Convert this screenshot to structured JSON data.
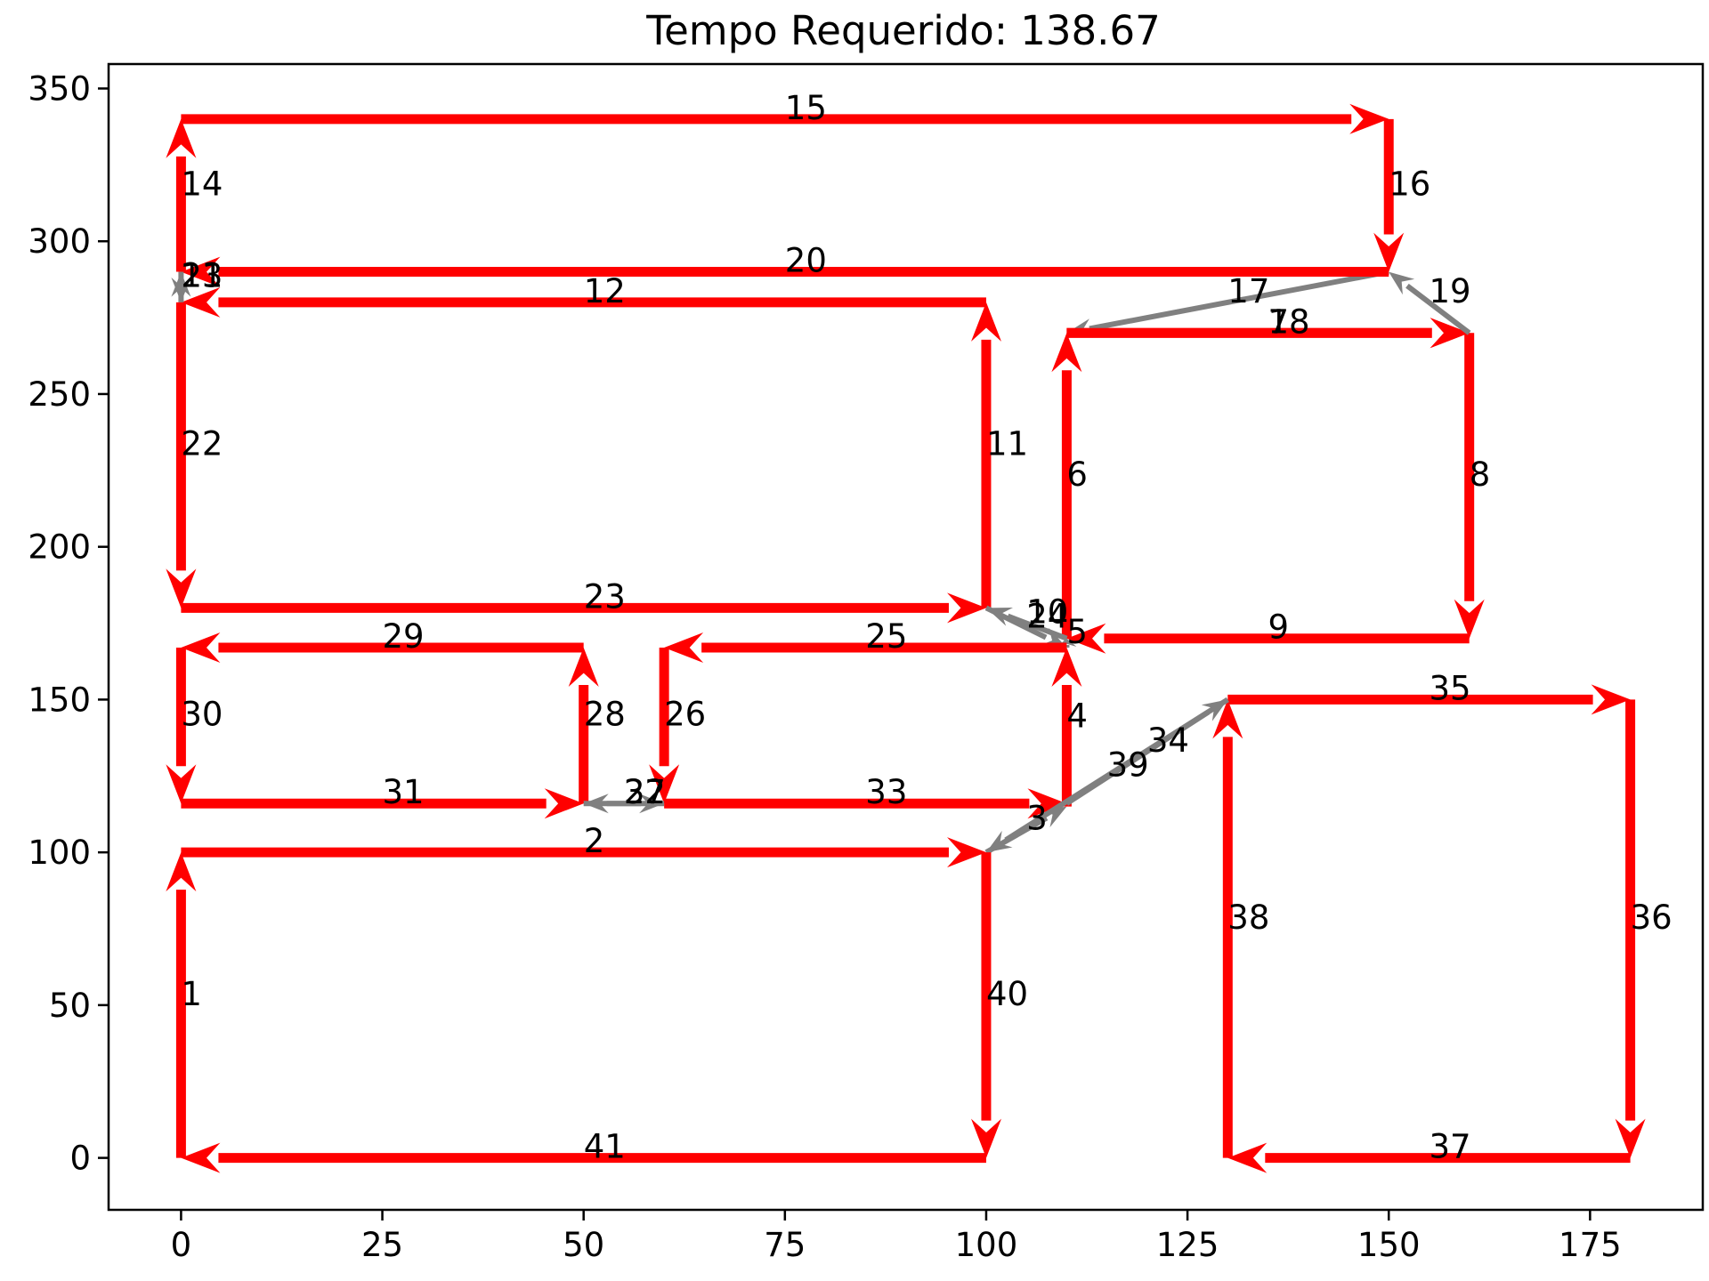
{
  "chart_data": {
    "type": "line",
    "title": "Tempo Requerido: 138.67",
    "xlabel": "",
    "ylabel": "",
    "xlim": [
      -9,
      189
    ],
    "ylim": [
      -17,
      358
    ],
    "xticks": [
      0,
      25,
      50,
      75,
      100,
      125,
      150,
      175
    ],
    "yticks": [
      0,
      50,
      100,
      150,
      200,
      250,
      300,
      350
    ],
    "grid": false,
    "colors": {
      "path": "#ff0000",
      "transition": "#808080"
    },
    "edges": [
      {
        "label": "1",
        "from": [
          0,
          0
        ],
        "to": [
          0,
          100
        ],
        "kind": "path"
      },
      {
        "label": "2",
        "from": [
          0,
          100
        ],
        "to": [
          100,
          100
        ],
        "kind": "path"
      },
      {
        "label": "3",
        "from": [
          100,
          100
        ],
        "to": [
          110,
          115
        ],
        "kind": "transition"
      },
      {
        "label": "4",
        "from": [
          110,
          115
        ],
        "to": [
          110,
          167
        ],
        "kind": "path"
      },
      {
        "label": "5",
        "from": [
          110,
          167
        ],
        "to": [
          110,
          170
        ],
        "kind": "transition"
      },
      {
        "label": "6",
        "from": [
          110,
          170
        ],
        "to": [
          110,
          270
        ],
        "kind": "path"
      },
      {
        "label": "7",
        "from": [
          110,
          270
        ],
        "to": [
          160,
          270
        ],
        "kind": "path"
      },
      {
        "label": "8",
        "from": [
          160,
          270
        ],
        "to": [
          160,
          170
        ],
        "kind": "path"
      },
      {
        "label": "9",
        "from": [
          160,
          170
        ],
        "to": [
          110,
          170
        ],
        "kind": "path"
      },
      {
        "label": "10",
        "from": [
          110,
          170
        ],
        "to": [
          100,
          180
        ],
        "kind": "transition"
      },
      {
        "label": "11",
        "from": [
          100,
          180
        ],
        "to": [
          100,
          280
        ],
        "kind": "path"
      },
      {
        "label": "12",
        "from": [
          100,
          280
        ],
        "to": [
          0,
          280
        ],
        "kind": "path"
      },
      {
        "label": "13",
        "from": [
          0,
          280
        ],
        "to": [
          0,
          290
        ],
        "kind": "transition"
      },
      {
        "label": "14",
        "from": [
          0,
          290
        ],
        "to": [
          0,
          340
        ],
        "kind": "path"
      },
      {
        "label": "15",
        "from": [
          0,
          340
        ],
        "to": [
          150,
          340
        ],
        "kind": "path"
      },
      {
        "label": "16",
        "from": [
          150,
          340
        ],
        "to": [
          150,
          290
        ],
        "kind": "path"
      },
      {
        "label": "17",
        "from": [
          150,
          290
        ],
        "to": [
          110,
          270
        ],
        "kind": "transition"
      },
      {
        "label": "18",
        "from": [
          110,
          270
        ],
        "to": [
          160,
          270
        ],
        "kind": "path"
      },
      {
        "label": "19",
        "from": [
          160,
          270
        ],
        "to": [
          150,
          290
        ],
        "kind": "transition"
      },
      {
        "label": "20",
        "from": [
          150,
          290
        ],
        "to": [
          0,
          290
        ],
        "kind": "path"
      },
      {
        "label": "21",
        "from": [
          0,
          290
        ],
        "to": [
          0,
          280
        ],
        "kind": "transition"
      },
      {
        "label": "22",
        "from": [
          0,
          280
        ],
        "to": [
          0,
          180
        ],
        "kind": "path"
      },
      {
        "label": "23",
        "from": [
          0,
          180
        ],
        "to": [
          100,
          180
        ],
        "kind": "path"
      },
      {
        "label": "24",
        "from": [
          100,
          180
        ],
        "to": [
          110,
          167
        ],
        "kind": "transition"
      },
      {
        "label": "25",
        "from": [
          110,
          167
        ],
        "to": [
          60,
          167
        ],
        "kind": "path"
      },
      {
        "label": "26",
        "from": [
          60,
          167
        ],
        "to": [
          60,
          116
        ],
        "kind": "path"
      },
      {
        "label": "27",
        "from": [
          60,
          116
        ],
        "to": [
          50,
          116
        ],
        "kind": "transition"
      },
      {
        "label": "28",
        "from": [
          50,
          116
        ],
        "to": [
          50,
          167
        ],
        "kind": "path"
      },
      {
        "label": "29",
        "from": [
          50,
          167
        ],
        "to": [
          0,
          167
        ],
        "kind": "path"
      },
      {
        "label": "30",
        "from": [
          0,
          167
        ],
        "to": [
          0,
          116
        ],
        "kind": "path"
      },
      {
        "label": "31",
        "from": [
          0,
          116
        ],
        "to": [
          50,
          116
        ],
        "kind": "path"
      },
      {
        "label": "32",
        "from": [
          50,
          116
        ],
        "to": [
          60,
          116
        ],
        "kind": "transition"
      },
      {
        "label": "33",
        "from": [
          60,
          116
        ],
        "to": [
          110,
          116
        ],
        "kind": "path"
      },
      {
        "label": "34",
        "from": [
          110,
          116
        ],
        "to": [
          130,
          150
        ],
        "kind": "transition"
      },
      {
        "label": "35",
        "from": [
          130,
          150
        ],
        "to": [
          180,
          150
        ],
        "kind": "path"
      },
      {
        "label": "36",
        "from": [
          180,
          150
        ],
        "to": [
          180,
          0
        ],
        "kind": "path"
      },
      {
        "label": "37",
        "from": [
          180,
          0
        ],
        "to": [
          130,
          0
        ],
        "kind": "path"
      },
      {
        "label": "38",
        "from": [
          130,
          0
        ],
        "to": [
          130,
          150
        ],
        "kind": "path"
      },
      {
        "label": "39",
        "from": [
          130,
          150
        ],
        "to": [
          100,
          100
        ],
        "kind": "transition"
      },
      {
        "label": "40",
        "from": [
          100,
          100
        ],
        "to": [
          100,
          0
        ],
        "kind": "path"
      },
      {
        "label": "41",
        "from": [
          100,
          0
        ],
        "to": [
          0,
          0
        ],
        "kind": "path"
      }
    ]
  }
}
